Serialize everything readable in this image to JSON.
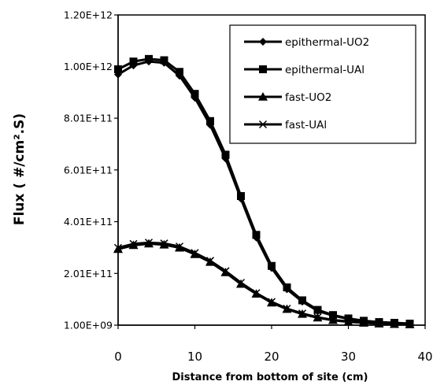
{
  "chart_data": {
    "type": "line",
    "xlabel": "Distance from bottom of site (cm)",
    "ylabel": "Flux ( #/cm².S)",
    "xlim": [
      0,
      40
    ],
    "ylim": [
      1000000000,
      1200000000000
    ],
    "x_ticks": [
      0,
      10,
      20,
      30,
      40
    ],
    "y_ticks": [
      1000000000,
      201000000000,
      401000000000,
      601000000000,
      801000000000,
      1000000000000,
      1200000000000
    ],
    "x_tick_labels": [
      "0",
      "10",
      "20",
      "30",
      "40"
    ],
    "y_tick_labels": [
      "1.00E+09",
      "2.01E+11",
      "4.01E+11",
      "6.01E+11",
      "8.01E+11",
      "1.00E+12",
      "1.20E+12"
    ],
    "grid": false,
    "legend_position": "top-right",
    "x": [
      0,
      2,
      4,
      6,
      8,
      10,
      12,
      14,
      16,
      18,
      20,
      22,
      24,
      26,
      28,
      30,
      32,
      34,
      36,
      38
    ],
    "series": [
      {
        "name": "epithermal-UO2",
        "marker": "diamond",
        "values": [
          970000000000,
          1005000000000,
          1020000000000,
          1015000000000,
          965000000000,
          880000000000,
          775000000000,
          645000000000,
          490000000000,
          340000000000,
          222000000000,
          140000000000,
          92000000000,
          56000000000,
          38000000000,
          25000000000,
          17000000000,
          12000000000,
          9000000000,
          6000000000
        ]
      },
      {
        "name": "epithermal-UAl",
        "marker": "square",
        "values": [
          990000000000,
          1020000000000,
          1030000000000,
          1025000000000,
          980000000000,
          895000000000,
          790000000000,
          660000000000,
          500000000000,
          350000000000,
          230000000000,
          147000000000,
          97000000000,
          60000000000,
          40000000000,
          27000000000,
          18000000000,
          13000000000,
          10000000000,
          7000000000
        ]
      },
      {
        "name": "fast-UO2",
        "marker": "triangle",
        "values": [
          295000000000,
          310000000000,
          316000000000,
          312000000000,
          300000000000,
          275000000000,
          245000000000,
          205000000000,
          160000000000,
          122000000000,
          88000000000,
          63000000000,
          44000000000,
          30000000000,
          20000000000,
          14000000000,
          10000000000,
          7000000000,
          5000000000,
          4000000000
        ]
      },
      {
        "name": "fast-UAl",
        "marker": "x",
        "values": [
          300000000000,
          315000000000,
          320000000000,
          317000000000,
          305000000000,
          280000000000,
          250000000000,
          210000000000,
          165000000000,
          125000000000,
          91000000000,
          65000000000,
          46000000000,
          31000000000,
          21000000000,
          15000000000,
          11000000000,
          8000000000,
          6000000000,
          4000000000
        ]
      }
    ]
  }
}
